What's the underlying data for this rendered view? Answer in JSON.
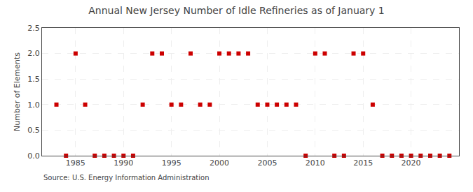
{
  "chart_data": {
    "type": "scatter",
    "title": "Annual New Jersey Number of Idle Refineries as of January 1",
    "ylabel": "Number of Elements",
    "annotations": [
      "Source: U.S. Energy Information Administration"
    ],
    "x": [
      1983,
      1984,
      1985,
      1986,
      1987,
      1988,
      1989,
      1990,
      1991,
      1992,
      1993,
      1994,
      1995,
      1996,
      1997,
      1998,
      1999,
      2000,
      2001,
      2002,
      2003,
      2004,
      2005,
      2006,
      2007,
      2008,
      2009,
      2010,
      2011,
      2012,
      2013,
      2014,
      2015,
      2016,
      2017,
      2018,
      2019,
      2020,
      2021,
      2022,
      2023,
      2024
    ],
    "values": [
      1,
      0,
      2,
      1,
      0,
      0,
      0,
      0,
      0,
      1,
      2,
      2,
      1,
      1,
      2,
      1,
      1,
      2,
      2,
      2,
      2,
      1,
      1,
      1,
      1,
      1,
      0,
      2,
      2,
      0,
      0,
      2,
      2,
      1,
      0,
      0,
      0,
      0,
      0,
      0,
      0,
      0
    ],
    "color": "#cc0000",
    "marker": "square",
    "xlim": [
      1981.5,
      2025
    ],
    "ylim": [
      0.0,
      2.5
    ],
    "xticks": [
      1985,
      1990,
      1995,
      2000,
      2005,
      2010,
      2015,
      2020
    ],
    "yticks": [
      {
        "value": 0.0,
        "label": "0.0"
      },
      0.5,
      {
        "value": 1.0,
        "label": "1.0"
      },
      1.5,
      {
        "value": 2.0,
        "label": "2.0"
      },
      2.5
    ],
    "grid": true
  }
}
